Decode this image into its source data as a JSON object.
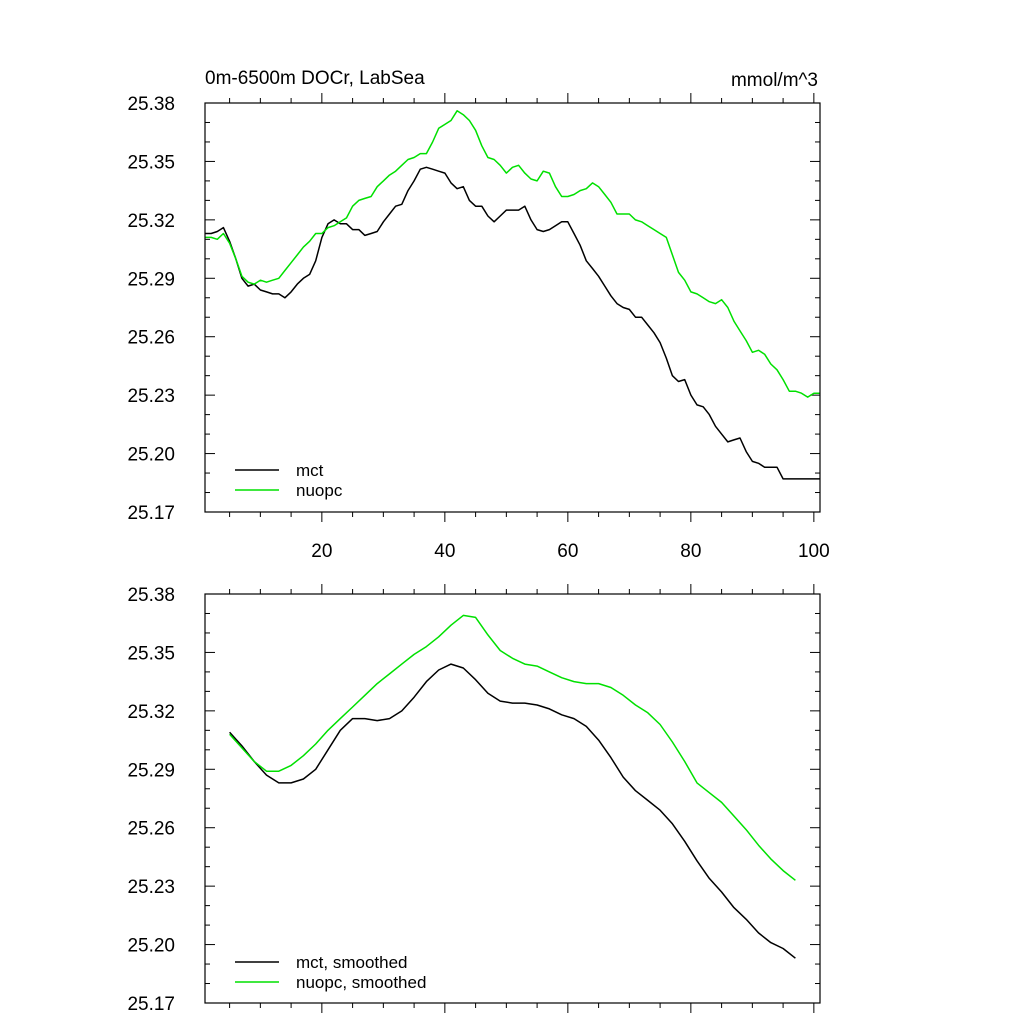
{
  "chart_data": [
    {
      "type": "line",
      "title_left": "0m-6500m DOCr, LabSea",
      "title_right": "mmol/m^3",
      "xlabel": "",
      "ylabel": "",
      "xlim": [
        1,
        101
      ],
      "ylim": [
        25.17,
        25.38
      ],
      "xticks": [
        20,
        40,
        60,
        80,
        100
      ],
      "xtick_labels": [
        "20",
        "40",
        "60",
        "80",
        "100"
      ],
      "yticks": [
        25.17,
        25.2,
        25.23,
        25.26,
        25.29,
        25.32,
        25.35,
        25.38
      ],
      "ytick_labels": [
        "25.17",
        "25.20",
        "25.23",
        "25.26",
        "25.29",
        "25.32",
        "25.35",
        "25.38"
      ],
      "legend_position": "bottom-left",
      "series": [
        {
          "name": "mct",
          "color": "#000000",
          "x": [
            1,
            2,
            3,
            4,
            5,
            6,
            7,
            8,
            9,
            10,
            11,
            12,
            13,
            14,
            15,
            16,
            17,
            18,
            19,
            20,
            21,
            22,
            23,
            24,
            25,
            26,
            27,
            28,
            29,
            30,
            31,
            32,
            33,
            34,
            35,
            36,
            37,
            38,
            39,
            40,
            41,
            42,
            43,
            44,
            45,
            46,
            47,
            48,
            49,
            50,
            51,
            52,
            53,
            54,
            55,
            56,
            57,
            58,
            59,
            60,
            61,
            62,
            63,
            64,
            65,
            66,
            67,
            68,
            69,
            70,
            71,
            72,
            73,
            74,
            75,
            76,
            77,
            78,
            79,
            80,
            81,
            82,
            83,
            84,
            85,
            86,
            87,
            88,
            89,
            90,
            91,
            92,
            93,
            94,
            95,
            96,
            97,
            98,
            99,
            100,
            101
          ],
          "values": [
            25.313,
            25.313,
            25.314,
            25.316,
            25.309,
            25.3,
            25.29,
            25.286,
            25.287,
            25.284,
            25.283,
            25.282,
            25.282,
            25.28,
            25.283,
            25.287,
            25.29,
            25.292,
            25.299,
            25.311,
            25.318,
            25.32,
            25.318,
            25.318,
            25.315,
            25.315,
            25.312,
            25.313,
            25.314,
            25.319,
            25.323,
            25.327,
            25.328,
            25.335,
            25.34,
            25.346,
            25.347,
            25.346,
            25.345,
            25.344,
            25.339,
            25.336,
            25.337,
            25.33,
            25.327,
            25.327,
            25.322,
            25.319,
            25.322,
            25.325,
            25.325,
            25.325,
            25.327,
            25.32,
            25.315,
            25.314,
            25.315,
            25.317,
            25.319,
            25.319,
            25.313,
            25.307,
            25.299,
            25.295,
            25.291,
            25.286,
            25.281,
            25.277,
            25.275,
            25.274,
            25.27,
            25.27,
            25.266,
            25.262,
            25.257,
            25.249,
            25.24,
            25.237,
            25.238,
            25.23,
            25.225,
            25.224,
            25.22,
            25.214,
            25.21,
            25.206,
            25.207,
            25.208,
            25.201,
            25.196,
            25.195,
            25.193,
            25.193,
            25.193,
            25.187,
            25.187,
            25.187,
            25.187,
            25.187,
            25.187,
            25.187
          ]
        },
        {
          "name": "nuopc",
          "color": "#00e000",
          "x": [
            1,
            2,
            3,
            4,
            5,
            6,
            7,
            8,
            9,
            10,
            11,
            12,
            13,
            14,
            15,
            16,
            17,
            18,
            19,
            20,
            21,
            22,
            23,
            24,
            25,
            26,
            27,
            28,
            29,
            30,
            31,
            32,
            33,
            34,
            35,
            36,
            37,
            38,
            39,
            40,
            41,
            42,
            43,
            44,
            45,
            46,
            47,
            48,
            49,
            50,
            51,
            52,
            53,
            54,
            55,
            56,
            57,
            58,
            59,
            60,
            61,
            62,
            63,
            64,
            65,
            66,
            67,
            68,
            69,
            70,
            71,
            72,
            73,
            74,
            75,
            76,
            77,
            78,
            79,
            80,
            81,
            82,
            83,
            84,
            85,
            86,
            87,
            88,
            89,
            90,
            91,
            92,
            93,
            94,
            95,
            96,
            97,
            98,
            99,
            100,
            101
          ],
          "values": [
            25.311,
            25.311,
            25.31,
            25.313,
            25.308,
            25.3,
            25.291,
            25.288,
            25.287,
            25.289,
            25.288,
            25.289,
            25.29,
            25.294,
            25.298,
            25.302,
            25.306,
            25.309,
            25.313,
            25.313,
            25.316,
            25.317,
            25.319,
            25.321,
            25.327,
            25.33,
            25.331,
            25.332,
            25.337,
            25.34,
            25.343,
            25.345,
            25.348,
            25.351,
            25.352,
            25.354,
            25.354,
            25.36,
            25.367,
            25.369,
            25.371,
            25.376,
            25.374,
            25.371,
            25.366,
            25.358,
            25.352,
            25.351,
            25.348,
            25.344,
            25.347,
            25.348,
            25.344,
            25.341,
            25.34,
            25.345,
            25.344,
            25.337,
            25.332,
            25.332,
            25.333,
            25.335,
            25.336,
            25.339,
            25.337,
            25.333,
            25.329,
            25.323,
            25.323,
            25.323,
            25.32,
            25.319,
            25.317,
            25.315,
            25.313,
            25.311,
            25.302,
            25.293,
            25.289,
            25.283,
            25.282,
            25.28,
            25.278,
            25.277,
            25.279,
            25.275,
            25.268,
            25.263,
            25.258,
            25.252,
            25.253,
            25.251,
            25.246,
            25.243,
            25.238,
            25.232,
            25.232,
            25.231,
            25.229,
            25.231,
            25.231
          ]
        }
      ]
    },
    {
      "type": "line",
      "title_left": "",
      "title_right": "",
      "xlabel": "",
      "ylabel": "",
      "xlim": [
        1,
        101
      ],
      "ylim": [
        25.17,
        25.38
      ],
      "xticks": [
        20,
        40,
        60,
        80,
        100
      ],
      "xtick_labels": [],
      "yticks": [
        25.17,
        25.2,
        25.23,
        25.26,
        25.29,
        25.32,
        25.35,
        25.38
      ],
      "ytick_labels": [
        "25.17",
        "25.20",
        "25.23",
        "25.26",
        "25.29",
        "25.32",
        "25.35",
        "25.38"
      ],
      "legend_position": "bottom-left",
      "series": [
        {
          "name": "mct, smoothed",
          "color": "#000000",
          "x": [
            5,
            7,
            9,
            11,
            13,
            15,
            17,
            19,
            21,
            23,
            25,
            27,
            29,
            31,
            33,
            35,
            37,
            39,
            41,
            43,
            45,
            47,
            49,
            51,
            53,
            55,
            57,
            59,
            61,
            63,
            65,
            67,
            69,
            71,
            73,
            75,
            77,
            79,
            81,
            83,
            85,
            87,
            89,
            91,
            93,
            95,
            97
          ],
          "values": [
            25.309,
            25.302,
            25.294,
            25.287,
            25.283,
            25.283,
            25.285,
            25.29,
            25.3,
            25.31,
            25.316,
            25.316,
            25.315,
            25.316,
            25.32,
            25.327,
            25.335,
            25.341,
            25.344,
            25.342,
            25.336,
            25.329,
            25.325,
            25.324,
            25.324,
            25.323,
            25.321,
            25.318,
            25.316,
            25.312,
            25.305,
            25.296,
            25.286,
            25.279,
            25.274,
            25.269,
            25.262,
            25.253,
            25.243,
            25.234,
            25.227,
            25.219,
            25.213,
            25.206,
            25.201,
            25.198,
            25.193
          ]
        },
        {
          "name": "nuopc, smoothed",
          "color": "#00e000",
          "x": [
            5,
            7,
            9,
            11,
            13,
            15,
            17,
            19,
            21,
            23,
            25,
            27,
            29,
            31,
            33,
            35,
            37,
            39,
            41,
            43,
            45,
            47,
            49,
            51,
            53,
            55,
            57,
            59,
            61,
            63,
            65,
            67,
            69,
            71,
            73,
            75,
            77,
            79,
            81,
            83,
            85,
            87,
            89,
            91,
            93,
            95,
            97
          ],
          "values": [
            25.308,
            25.301,
            25.294,
            25.289,
            25.289,
            25.292,
            25.297,
            25.303,
            25.31,
            25.316,
            25.322,
            25.328,
            25.334,
            25.339,
            25.344,
            25.349,
            25.353,
            25.358,
            25.364,
            25.369,
            25.368,
            25.359,
            25.351,
            25.347,
            25.344,
            25.343,
            25.34,
            25.337,
            25.335,
            25.334,
            25.334,
            25.332,
            25.328,
            25.323,
            25.319,
            25.313,
            25.304,
            25.294,
            25.283,
            25.278,
            25.273,
            25.266,
            25.259,
            25.251,
            25.244,
            25.238,
            25.233
          ]
        }
      ]
    }
  ]
}
